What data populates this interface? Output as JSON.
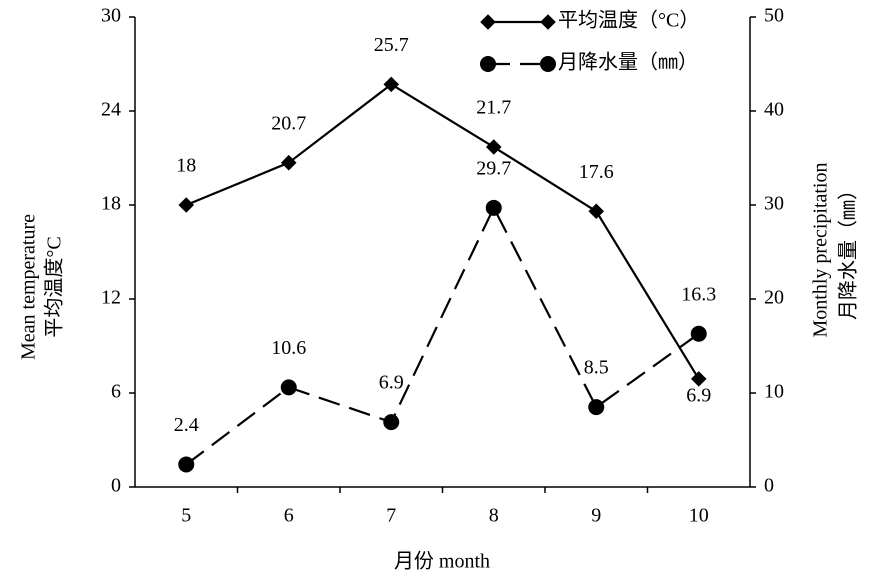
{
  "chart_data": {
    "type": "line",
    "categories": [
      "5",
      "6",
      "7",
      "8",
      "9",
      "10"
    ],
    "x_label": "月份 month",
    "y_label": [
      "Mean temperature",
      "平均温度°C"
    ],
    "y2_label": [
      "Monthly precipitation",
      "月降水量（㎜）"
    ],
    "ylim": [
      0,
      30
    ],
    "yticks": [
      0,
      6,
      12,
      18,
      24,
      30
    ],
    "y2lim": [
      0,
      50
    ],
    "y2ticks": [
      0,
      10,
      20,
      30,
      40,
      50
    ],
    "legend": "upper right",
    "series": [
      {
        "name": "平均温度（°C）",
        "color": "#000000",
        "marker": "diamond",
        "dash": "solid",
        "values": [
          18,
          20.7,
          25.7,
          21.7,
          17.6,
          6.9
        ]
      },
      {
        "name": "月降水量（㎜）",
        "color": "#000000",
        "marker": "circle",
        "dash": "dashed",
        "axis": "y2",
        "values": [
          2.4,
          10.6,
          6.9,
          29.7,
          8.5,
          16.3
        ]
      }
    ]
  }
}
